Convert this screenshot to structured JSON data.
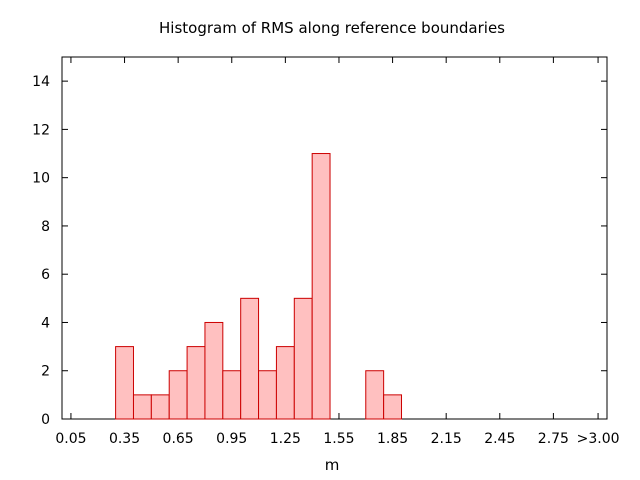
{
  "chart_data": {
    "type": "bar",
    "title": "Histogram of RMS along reference boundaries",
    "xlabel": "m",
    "ylabel": "",
    "xlim": [
      0.0,
      3.05
    ],
    "ylim": [
      0,
      15
    ],
    "bin_width": 0.1,
    "bins": [
      {
        "x": 0.35,
        "value": 3
      },
      {
        "x": 0.45,
        "value": 1
      },
      {
        "x": 0.55,
        "value": 1
      },
      {
        "x": 0.65,
        "value": 2
      },
      {
        "x": 0.75,
        "value": 3
      },
      {
        "x": 0.85,
        "value": 4
      },
      {
        "x": 0.95,
        "value": 2
      },
      {
        "x": 1.05,
        "value": 5
      },
      {
        "x": 1.15,
        "value": 2
      },
      {
        "x": 1.25,
        "value": 3
      },
      {
        "x": 1.35,
        "value": 5
      },
      {
        "x": 1.45,
        "value": 11
      },
      {
        "x": 1.75,
        "value": 2
      },
      {
        "x": 1.85,
        "value": 1
      }
    ],
    "xticks": [
      {
        "value": 0.05,
        "label": "0.05"
      },
      {
        "value": 0.35,
        "label": "0.35"
      },
      {
        "value": 0.65,
        "label": "0.65"
      },
      {
        "value": 0.95,
        "label": "0.95"
      },
      {
        "value": 1.25,
        "label": "1.25"
      },
      {
        "value": 1.55,
        "label": "1.55"
      },
      {
        "value": 1.85,
        "label": "1.85"
      },
      {
        "value": 2.15,
        "label": "2.15"
      },
      {
        "value": 2.45,
        "label": "2.45"
      },
      {
        "value": 2.75,
        "label": "2.75"
      },
      {
        "value": 3.0,
        "label": ">3.00"
      }
    ],
    "yticks": [
      {
        "value": 0,
        "label": "0"
      },
      {
        "value": 2,
        "label": "2"
      },
      {
        "value": 4,
        "label": "4"
      },
      {
        "value": 6,
        "label": "6"
      },
      {
        "value": 8,
        "label": "8"
      },
      {
        "value": 10,
        "label": "10"
      },
      {
        "value": 12,
        "label": "12"
      },
      {
        "value": 14,
        "label": "14"
      }
    ],
    "grid": false,
    "colors": {
      "fill": "#ffc0c0",
      "stroke": "#cc0000",
      "axis": "#000000"
    }
  }
}
